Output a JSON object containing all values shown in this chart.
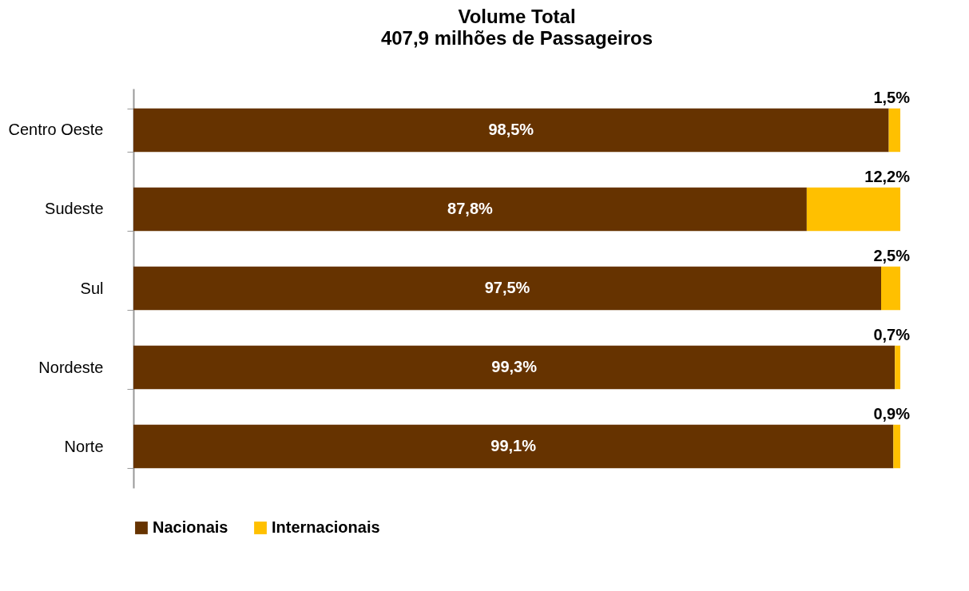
{
  "chart_data": {
    "type": "bar",
    "orientation": "horizontal",
    "stacked": true,
    "title": "Volume Total",
    "subtitle": "407,9 milhões de Passageiros",
    "categories": [
      "Centro Oeste",
      "Sudeste",
      "Sul",
      "Nordeste",
      "Norte"
    ],
    "series": [
      {
        "name": "Nacionais",
        "color": "#663300",
        "values": [
          98.5,
          87.8,
          97.5,
          99.3,
          99.1
        ],
        "value_labels": [
          "98,5%",
          "87,8%",
          "97,5%",
          "99,3%",
          "99,1%"
        ]
      },
      {
        "name": "Internacionais",
        "color": "#ffc000",
        "values": [
          1.5,
          12.2,
          2.5,
          0.7,
          0.9
        ],
        "value_labels": [
          "1,5%",
          "12,2%",
          "2,5%",
          "0,7%",
          "0,9%"
        ]
      }
    ],
    "legend": "bottom",
    "tick_labels": "y"
  }
}
